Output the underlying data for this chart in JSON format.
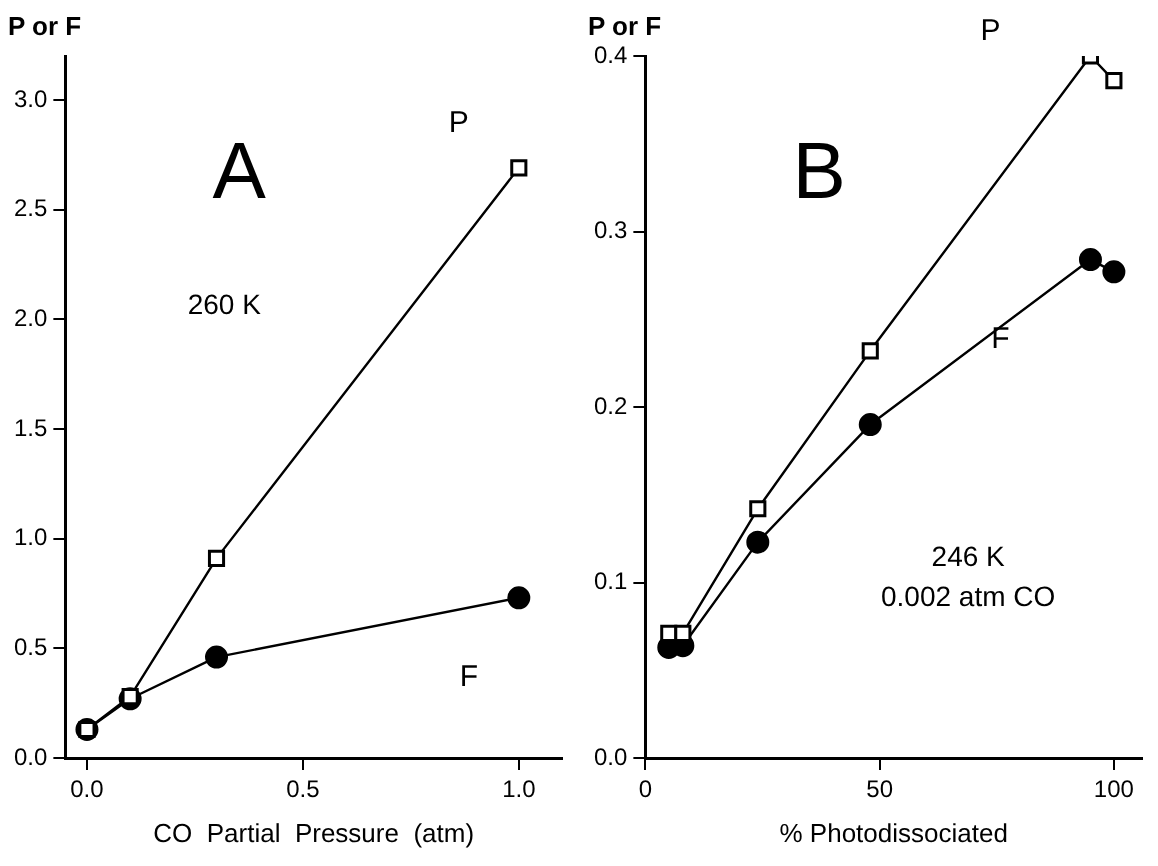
{
  "chart_data": [
    {
      "type": "line",
      "title": "A",
      "xlabel": "CO  Partial  Pressure  (atm)",
      "ylabel": "P or F",
      "xlim": [
        -0.05,
        1.1
      ],
      "ylim": [
        0,
        3.2
      ],
      "xticks": [
        {
          "value": 0,
          "label": "0.0"
        },
        {
          "value": 0.5,
          "label": "0.5"
        },
        {
          "value": 1,
          "label": "1.0"
        }
      ],
      "yticks": [
        {
          "value": 0,
          "label": "0.0"
        },
        {
          "value": 0.5,
          "label": "0.5"
        },
        {
          "value": 1,
          "label": "1.0"
        },
        {
          "value": 1.5,
          "label": "1.5"
        },
        {
          "value": 2,
          "label": "2.0"
        },
        {
          "value": 2.5,
          "label": "2.5"
        },
        {
          "value": 3,
          "label": "3.0"
        }
      ],
      "grid": false,
      "legend": false,
      "series": [
        {
          "name": "P",
          "x": [
            0,
            0.1,
            0.3,
            1.0
          ],
          "values": [
            0.13,
            0.28,
            0.91,
            2.69
          ],
          "color": "#000000",
          "marker": "square",
          "line_style": "solid"
        },
        {
          "name": "F",
          "x": [
            0,
            0.1,
            0.3,
            1.0
          ],
          "values": [
            0.13,
            0.27,
            0.46,
            0.73
          ],
          "color": "#000000",
          "marker": "circle",
          "line_style": "solid"
        }
      ],
      "annotations": [
        "260 K"
      ]
    },
    {
      "type": "line",
      "title": "B",
      "xlabel": "% Photodissociated",
      "ylabel": "P or F",
      "xlim": [
        0,
        106
      ],
      "ylim": [
        0,
        0.4
      ],
      "xticks": [
        0,
        50,
        100
      ],
      "yticks": [
        {
          "value": 0,
          "label": "0.0"
        },
        {
          "value": 0.1,
          "label": "0.1"
        },
        {
          "value": 0.2,
          "label": "0.2"
        },
        {
          "value": 0.3,
          "label": "0.3"
        },
        {
          "value": 0.4,
          "label": "0.4"
        }
      ],
      "grid": false,
      "legend": false,
      "series": [
        {
          "name": "P",
          "x": [
            5,
            8,
            24,
            48,
            95,
            100
          ],
          "values": [
            0.071,
            0.071,
            0.142,
            0.232,
            0.4,
            0.386
          ],
          "color": "#000000",
          "marker": "square",
          "line_style": "solid"
        },
        {
          "name": "F",
          "x": [
            5,
            8,
            24,
            48,
            95,
            100
          ],
          "values": [
            0.063,
            0.064,
            0.123,
            0.19,
            0.284,
            0.277
          ],
          "color": "#000000",
          "marker": "circle",
          "line_style": "solid"
        }
      ],
      "annotations": [
        "246 K",
        "0.002 atm CO"
      ]
    }
  ]
}
